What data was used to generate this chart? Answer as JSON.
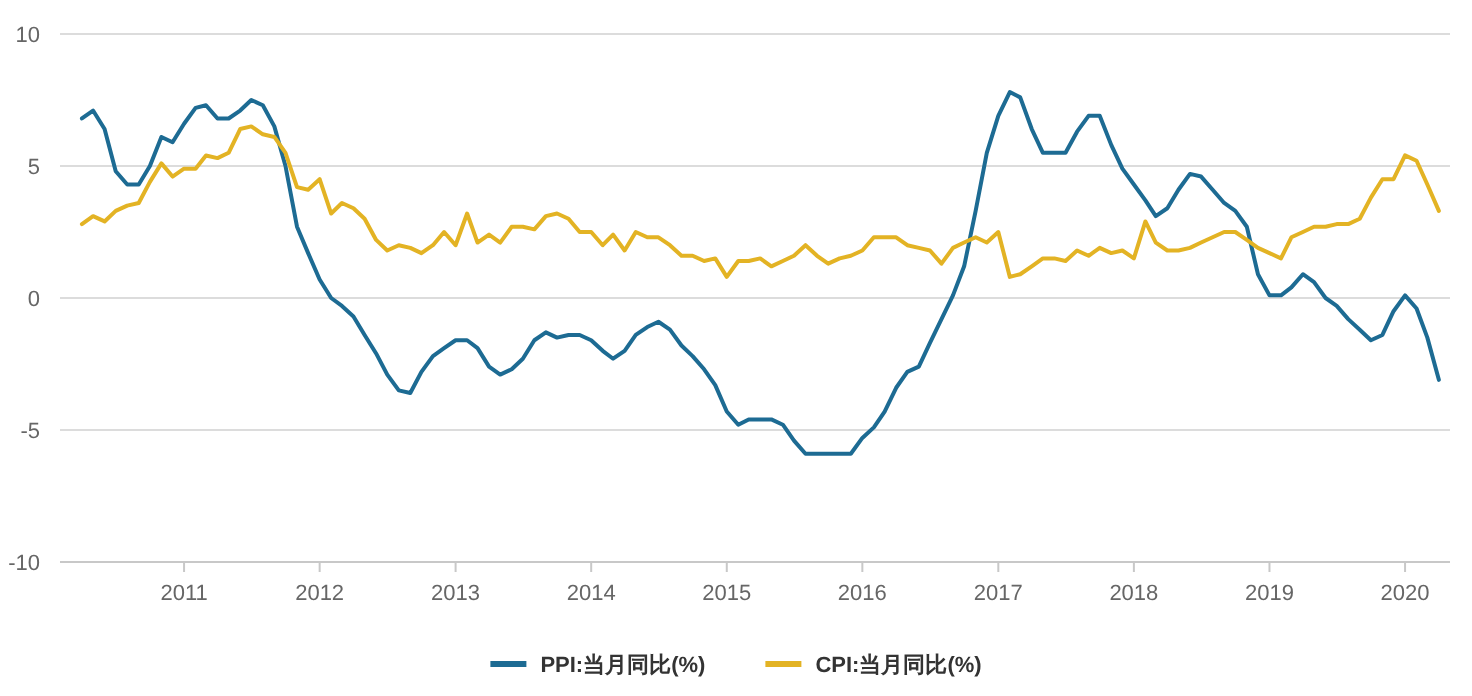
{
  "chart_data": {
    "type": "line",
    "x": [
      "2010-04",
      "2010-05",
      "2010-06",
      "2010-07",
      "2010-08",
      "2010-09",
      "2010-10",
      "2010-11",
      "2010-12",
      "2011-01",
      "2011-02",
      "2011-03",
      "2011-04",
      "2011-05",
      "2011-06",
      "2011-07",
      "2011-08",
      "2011-09",
      "2011-10",
      "2011-11",
      "2011-12",
      "2012-01",
      "2012-02",
      "2012-03",
      "2012-04",
      "2012-05",
      "2012-06",
      "2012-07",
      "2012-08",
      "2012-09",
      "2012-10",
      "2012-11",
      "2012-12",
      "2013-01",
      "2013-02",
      "2013-03",
      "2013-04",
      "2013-05",
      "2013-06",
      "2013-07",
      "2013-08",
      "2013-09",
      "2013-10",
      "2013-11",
      "2013-12",
      "2014-01",
      "2014-02",
      "2014-03",
      "2014-04",
      "2014-05",
      "2014-06",
      "2014-07",
      "2014-08",
      "2014-09",
      "2014-10",
      "2014-11",
      "2014-12",
      "2015-01",
      "2015-02",
      "2015-03",
      "2015-04",
      "2015-05",
      "2015-06",
      "2015-07",
      "2015-08",
      "2015-09",
      "2015-10",
      "2015-11",
      "2015-12",
      "2016-01",
      "2016-02",
      "2016-03",
      "2016-04",
      "2016-05",
      "2016-06",
      "2016-07",
      "2016-08",
      "2016-09",
      "2016-10",
      "2016-11",
      "2016-12",
      "2017-01",
      "2017-02",
      "2017-03",
      "2017-04",
      "2017-05",
      "2017-06",
      "2017-07",
      "2017-08",
      "2017-09",
      "2017-10",
      "2017-11",
      "2017-12",
      "2018-01",
      "2018-02",
      "2018-03",
      "2018-04",
      "2018-05",
      "2018-06",
      "2018-07",
      "2018-08",
      "2018-09",
      "2018-10",
      "2018-11",
      "2018-12",
      "2019-01",
      "2019-02",
      "2019-03",
      "2019-04",
      "2019-05",
      "2019-06",
      "2019-07",
      "2019-08",
      "2019-09",
      "2019-10",
      "2019-11",
      "2019-12",
      "2020-01",
      "2020-02",
      "2020-03",
      "2020-04"
    ],
    "series": [
      {
        "name": "PPI:当月同比(%)",
        "color": "#1d6b93",
        "values": [
          6.8,
          7.1,
          6.4,
          4.8,
          4.3,
          4.3,
          5.0,
          6.1,
          5.9,
          6.6,
          7.2,
          7.3,
          6.8,
          6.8,
          7.1,
          7.5,
          7.3,
          6.5,
          5.0,
          2.7,
          1.7,
          0.7,
          0.0,
          -0.3,
          -0.7,
          -1.4,
          -2.1,
          -2.9,
          -3.5,
          -3.6,
          -2.8,
          -2.2,
          -1.9,
          -1.6,
          -1.6,
          -1.9,
          -2.6,
          -2.9,
          -2.7,
          -2.3,
          -1.6,
          -1.3,
          -1.5,
          -1.4,
          -1.4,
          -1.6,
          -2.0,
          -2.3,
          -2.0,
          -1.4,
          -1.1,
          -0.9,
          -1.2,
          -1.8,
          -2.2,
          -2.7,
          -3.3,
          -4.3,
          -4.8,
          -4.6,
          -4.6,
          -4.6,
          -4.8,
          -5.4,
          -5.9,
          -5.9,
          -5.9,
          -5.9,
          -5.9,
          -5.3,
          -4.9,
          -4.3,
          -3.4,
          -2.8,
          -2.6,
          -1.7,
          -0.8,
          0.1,
          1.2,
          3.3,
          5.5,
          6.9,
          7.8,
          7.6,
          6.4,
          5.5,
          5.5,
          5.5,
          6.3,
          6.9,
          6.9,
          5.8,
          4.9,
          4.3,
          3.7,
          3.1,
          3.4,
          4.1,
          4.7,
          4.6,
          4.1,
          3.6,
          3.3,
          2.7,
          0.9,
          0.1,
          0.1,
          0.4,
          0.9,
          0.6,
          0.0,
          -0.3,
          -0.8,
          -1.2,
          -1.6,
          -1.4,
          -0.5,
          0.1,
          -0.4,
          -1.5,
          -3.1
        ]
      },
      {
        "name": "CPI:当月同比(%)",
        "color": "#e3b324",
        "values": [
          2.8,
          3.1,
          2.9,
          3.3,
          3.5,
          3.6,
          4.4,
          5.1,
          4.6,
          4.9,
          4.9,
          5.4,
          5.3,
          5.5,
          6.4,
          6.5,
          6.2,
          6.1,
          5.5,
          4.2,
          4.1,
          4.5,
          3.2,
          3.6,
          3.4,
          3.0,
          2.2,
          1.8,
          2.0,
          1.9,
          1.7,
          2.0,
          2.5,
          2.0,
          3.2,
          2.1,
          2.4,
          2.1,
          2.7,
          2.7,
          2.6,
          3.1,
          3.2,
          3.0,
          2.5,
          2.5,
          2.0,
          2.4,
          1.8,
          2.5,
          2.3,
          2.3,
          2.0,
          1.6,
          1.6,
          1.4,
          1.5,
          0.8,
          1.4,
          1.4,
          1.5,
          1.2,
          1.4,
          1.6,
          2.0,
          1.6,
          1.3,
          1.5,
          1.6,
          1.8,
          2.3,
          2.3,
          2.3,
          2.0,
          1.9,
          1.8,
          1.3,
          1.9,
          2.1,
          2.3,
          2.1,
          2.5,
          0.8,
          0.9,
          1.2,
          1.5,
          1.5,
          1.4,
          1.8,
          1.6,
          1.9,
          1.7,
          1.8,
          1.5,
          2.9,
          2.1,
          1.8,
          1.8,
          1.9,
          2.1,
          2.3,
          2.5,
          2.5,
          2.2,
          1.9,
          1.7,
          1.5,
          2.3,
          2.5,
          2.7,
          2.7,
          2.8,
          2.8,
          3.0,
          3.8,
          4.5,
          4.5,
          5.4,
          5.2,
          4.3,
          3.3
        ]
      }
    ],
    "xlim": [
      "2010-02",
      "2020-05"
    ],
    "xticks": [
      {
        "value": "2011-01",
        "label": "2011"
      },
      {
        "value": "2012-01",
        "label": "2012"
      },
      {
        "value": "2013-01",
        "label": "2013"
      },
      {
        "value": "2014-01",
        "label": "2014"
      },
      {
        "value": "2015-01",
        "label": "2015"
      },
      {
        "value": "2016-01",
        "label": "2016"
      },
      {
        "value": "2017-01",
        "label": "2017"
      },
      {
        "value": "2018-01",
        "label": "2018"
      },
      {
        "value": "2019-01",
        "label": "2019"
      },
      {
        "value": "2020-01",
        "label": "2020"
      }
    ],
    "ylim": [
      -10,
      10
    ],
    "yticks": [
      -10,
      -5,
      0,
      5,
      10
    ],
    "grid": "y",
    "legend": "bottom",
    "marker": "none",
    "line_style": "solid"
  }
}
